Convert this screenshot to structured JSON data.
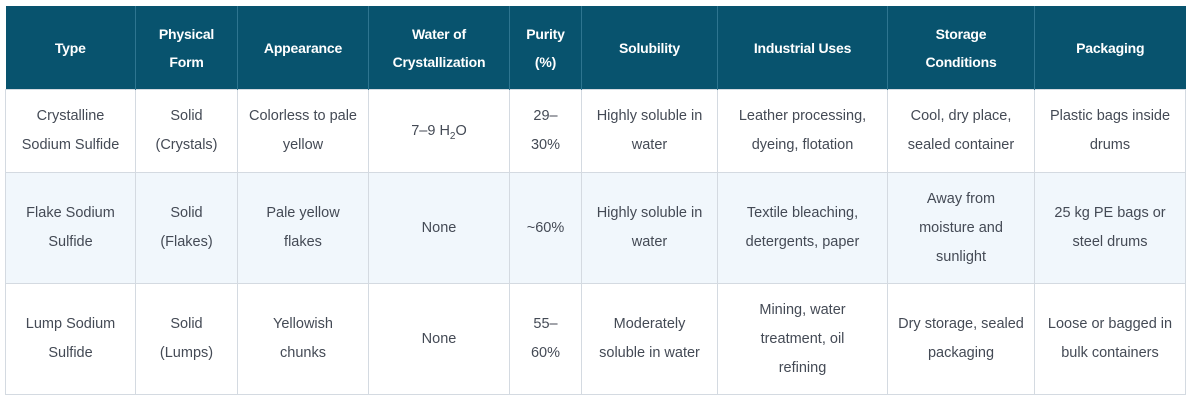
{
  "table": {
    "headers": [
      "Type",
      "Physical Form",
      "Appearance",
      "Water of Crystallization",
      "Purity (%)",
      "Solubility",
      "Industrial Uses",
      "Storage Conditions",
      "Packaging"
    ],
    "rows": [
      {
        "type": "Crystalline Sodium Sulfide",
        "form": "Solid (Crystals)",
        "appearance": "Colorless to pale yellow",
        "water_pre": "7–9 H",
        "water_sub": "2",
        "water_post": "O",
        "purity": "29–30%",
        "solubility": "Highly soluble in water",
        "uses": "Leather processing, dyeing, flotation",
        "storage": "Cool, dry place, sealed container",
        "packaging": "Plastic bags inside drums"
      },
      {
        "type": "Flake Sodium Sulfide",
        "form": "Solid (Flakes)",
        "appearance": "Pale yellow flakes",
        "water": "None",
        "purity": "~60%",
        "solubility": "Highly soluble in water",
        "uses": "Textile bleaching, detergents, paper",
        "storage": "Away from moisture and sunlight",
        "packaging": "25 kg PE bags or steel drums"
      },
      {
        "type": "Lump Sodium Sulfide",
        "form": "Solid (Lumps)",
        "appearance": "Yellowish chunks",
        "water": "None",
        "purity": "55–60%",
        "solubility": "Moderately soluble in water",
        "uses": "Mining, water treatment, oil refining",
        "storage": "Dry storage, sealed packaging",
        "packaging": "Loose or bagged in bulk containers"
      }
    ]
  }
}
